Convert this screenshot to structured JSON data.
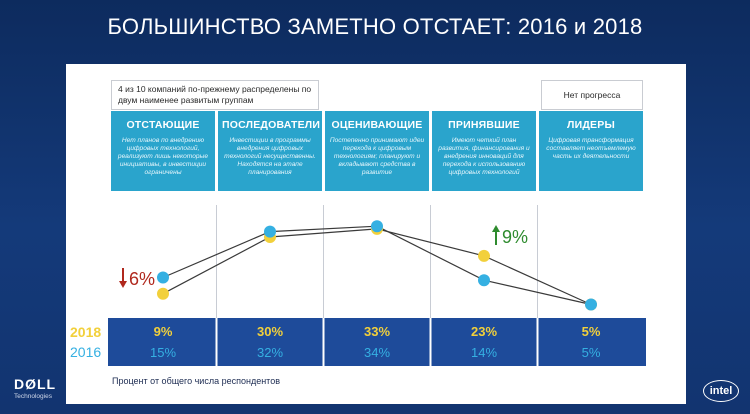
{
  "title": "БОЛЬШИНСТВО ЗАМЕТНО ОТСТАЕТ: 2016 и 2018",
  "note_laggards": "4 из 10 компаний по-прежнему распределены по двум наименее развитым группам",
  "note_leaders": "Нет прогресса",
  "footnote": "Процент от общего числа респондентов",
  "logos": {
    "dell": "DØLL",
    "dell_sub": "Technologies",
    "intel": "intel"
  },
  "colors": {
    "y2018": "#f2d03b",
    "y2016": "#35b0e2",
    "banner": "#2aa4cc",
    "row": "#1e4b9a",
    "up": "#2e8b2e",
    "down": "#b0281d"
  },
  "categories": [
    {
      "name": "ОТСТАЮЩИЕ",
      "desc": "Нет планов по внедрению цифровых технологий, реализуют лишь некоторые инициативы, в инвестиции ограничены"
    },
    {
      "name": "ПОСЛЕДОВАТЕЛИ",
      "desc": "Инвестиции в программы внедрения цифровых технологий несущественны. Находятся на этапе планирования"
    },
    {
      "name": "ОЦЕНИВАЮЩИЕ",
      "desc": "Постепенно принимают идеи перехода к цифровым технологиям; планируют и вкладывают средства в развитие"
    },
    {
      "name": "ПРИНЯВШИЕ",
      "desc": "Имеют четкий план развития, финансирования и внедрения инноваций для перехода к использованию цифровых технологий"
    },
    {
      "name": "ЛИДЕРЫ",
      "desc": "Цифровая трансформация составляет неотъемлемую часть их деятельности"
    }
  ],
  "chart_data": {
    "type": "line",
    "categories": [
      "ОТСТАЮЩИЕ",
      "ПОСЛЕДОВАТЕЛИ",
      "ОЦЕНИВАЮЩИЕ",
      "ПРИНЯВШИЕ",
      "ЛИДЕРЫ"
    ],
    "unit": "%",
    "series": [
      {
        "name": "2018",
        "values": [
          9,
          30,
          33,
          23,
          5
        ],
        "labels": [
          "9%",
          "30%",
          "33%",
          "23%",
          "5%"
        ],
        "color": "#f2d03b"
      },
      {
        "name": "2016",
        "values": [
          15,
          32,
          34,
          14,
          5
        ],
        "labels": [
          "15%",
          "32%",
          "34%",
          "14%",
          "5%"
        ],
        "color": "#35b0e2"
      }
    ],
    "ylim": [
      0,
      40
    ],
    "annotations": [
      {
        "text": "6%",
        "direction": "down",
        "category": "ОТСТАЮЩИЕ"
      },
      {
        "text": "9%",
        "direction": "up",
        "category": "ПРИНЯВШИЕ"
      }
    ]
  }
}
